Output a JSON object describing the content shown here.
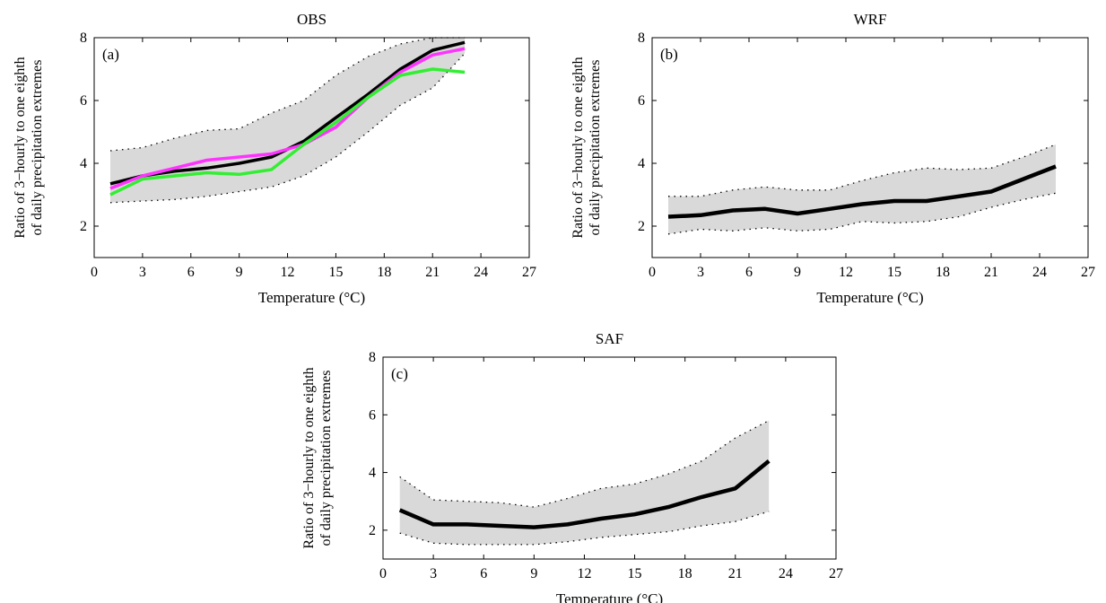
{
  "chart_data": [
    {
      "type": "line",
      "panel_label": "(a)",
      "title": "OBS",
      "xlabel": "Temperature (°C)",
      "ylabel": [
        "Ratio of 3−hourly to one eighth",
        "of daily precipitation extremes"
      ],
      "xlim": [
        0,
        27
      ],
      "ylim": [
        1,
        8
      ],
      "xticks": [
        "0",
        "3",
        "6",
        "9",
        "12",
        "15",
        "18",
        "21",
        "24",
        "27"
      ],
      "yticks": [
        "2",
        "4",
        "6",
        "8"
      ],
      "grid": false,
      "legend": "none",
      "band": {
        "x": [
          1,
          3,
          5,
          7,
          9,
          11,
          13,
          15,
          17,
          19,
          21,
          23
        ],
        "upper": [
          4.4,
          4.5,
          4.8,
          5.05,
          5.1,
          5.6,
          6.0,
          6.8,
          7.4,
          7.8,
          8.0,
          8.0
        ],
        "lower": [
          2.75,
          2.8,
          2.85,
          2.95,
          3.1,
          3.25,
          3.6,
          4.2,
          5.0,
          5.85,
          6.4,
          7.5
        ],
        "color": "#d9d9d9"
      },
      "series": [
        {
          "color": "#000000",
          "width": 3.5,
          "x": [
            1,
            3,
            5,
            7,
            9,
            11,
            13,
            15,
            17,
            19,
            21,
            23
          ],
          "values": [
            3.35,
            3.6,
            3.75,
            3.85,
            4.0,
            4.2,
            4.7,
            5.45,
            6.2,
            7.0,
            7.6,
            7.85
          ]
        },
        {
          "color": "#ff33ff",
          "width": 3.5,
          "x": [
            1,
            3,
            5,
            7,
            9,
            11,
            13,
            15,
            17,
            19,
            21,
            23
          ],
          "values": [
            3.2,
            3.6,
            3.85,
            4.1,
            4.2,
            4.3,
            4.6,
            5.15,
            6.1,
            6.9,
            7.45,
            7.65
          ]
        },
        {
          "color": "#33ee33",
          "width": 3.5,
          "x": [
            1,
            3,
            5,
            7,
            9,
            11,
            13,
            15,
            17,
            19,
            21,
            23
          ],
          "values": [
            3.0,
            3.5,
            3.6,
            3.7,
            3.65,
            3.8,
            4.6,
            5.3,
            6.1,
            6.8,
            7.0,
            6.9
          ]
        }
      ]
    },
    {
      "type": "line",
      "panel_label": "(b)",
      "title": "WRF",
      "xlabel": "Temperature (°C)",
      "ylabel": [
        "Ratio of 3−hourly to one eighth",
        "of daily precipitation extremes"
      ],
      "xlim": [
        0,
        27
      ],
      "ylim": [
        1,
        8
      ],
      "xticks": [
        "0",
        "3",
        "6",
        "9",
        "12",
        "15",
        "18",
        "21",
        "24",
        "27"
      ],
      "yticks": [
        "2",
        "4",
        "6",
        "8"
      ],
      "grid": false,
      "legend": "none",
      "band": {
        "x": [
          1,
          3,
          5,
          7,
          9,
          11,
          13,
          15,
          17,
          19,
          21,
          23,
          25
        ],
        "upper": [
          2.95,
          2.95,
          3.15,
          3.25,
          3.15,
          3.15,
          3.45,
          3.7,
          3.85,
          3.8,
          3.85,
          4.2,
          4.6
        ],
        "lower": [
          1.75,
          1.9,
          1.85,
          1.95,
          1.85,
          1.9,
          2.15,
          2.1,
          2.15,
          2.3,
          2.6,
          2.85,
          3.05
        ],
        "color": "#d9d9d9"
      },
      "series": [
        {
          "color": "#000000",
          "width": 4.5,
          "x": [
            1,
            3,
            5,
            7,
            9,
            11,
            13,
            15,
            17,
            19,
            21,
            23,
            25
          ],
          "values": [
            2.3,
            2.35,
            2.5,
            2.55,
            2.4,
            2.55,
            2.7,
            2.8,
            2.8,
            2.95,
            3.1,
            3.5,
            3.9
          ]
        }
      ]
    },
    {
      "type": "line",
      "panel_label": "(c)",
      "title": "SAF",
      "xlabel": "Temperature (°C)",
      "ylabel": [
        "Ratio of 3−hourly to one eighth",
        "of daily precipitation extremes"
      ],
      "xlim": [
        0,
        27
      ],
      "ylim": [
        1,
        8
      ],
      "xticks": [
        "0",
        "3",
        "6",
        "9",
        "12",
        "15",
        "18",
        "21",
        "24",
        "27"
      ],
      "yticks": [
        "2",
        "4",
        "6",
        "8"
      ],
      "grid": false,
      "legend": "none",
      "band": {
        "x": [
          1,
          3,
          5,
          7,
          9,
          11,
          13,
          15,
          17,
          19,
          21,
          23
        ],
        "upper": [
          3.85,
          3.05,
          3.0,
          2.95,
          2.8,
          3.1,
          3.45,
          3.6,
          3.95,
          4.4,
          5.2,
          5.8
        ],
        "lower": [
          1.9,
          1.55,
          1.5,
          1.5,
          1.5,
          1.6,
          1.75,
          1.85,
          1.95,
          2.15,
          2.3,
          2.65
        ],
        "color": "#d9d9d9"
      },
      "series": [
        {
          "color": "#000000",
          "width": 4.5,
          "x": [
            1,
            3,
            5,
            7,
            9,
            11,
            13,
            15,
            17,
            19,
            21,
            23
          ],
          "values": [
            2.7,
            2.2,
            2.2,
            2.15,
            2.1,
            2.2,
            2.4,
            2.55,
            2.8,
            3.15,
            3.45,
            4.4
          ]
        }
      ]
    }
  ]
}
